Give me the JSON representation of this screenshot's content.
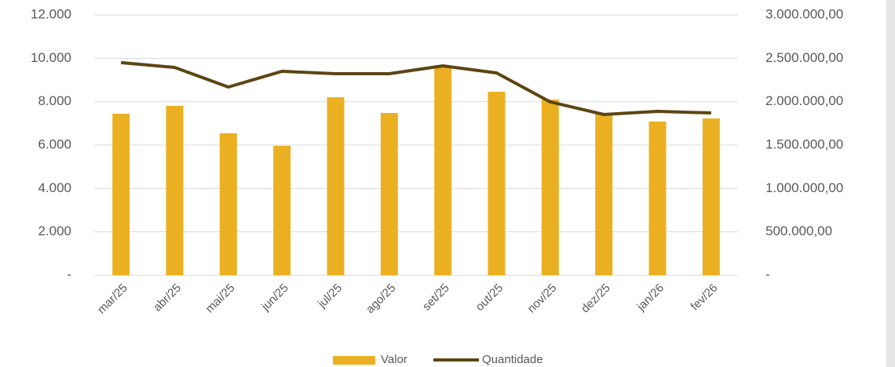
{
  "chart_data": {
    "type": "bar-line",
    "categories": [
      "mar/25",
      "abr/25",
      "mai/25",
      "jun/25",
      "jul/25",
      "ago/25",
      "set/25",
      "out/25",
      "nov/25",
      "dez/25",
      "jan/26",
      "fev/26"
    ],
    "series": [
      {
        "name": "Valor",
        "type": "bar",
        "axis": "y2",
        "color": "#ebb022",
        "values": [
          1861000,
          1952000,
          1636000,
          1491000,
          2051000,
          1870000,
          2413000,
          2114000,
          2024000,
          1861000,
          1771000,
          1807000
        ]
      },
      {
        "name": "Quantidade",
        "type": "line",
        "axis": "y",
        "color": "#5c4512",
        "values": [
          9800,
          9580,
          8675,
          9400,
          9290,
          9290,
          9650,
          9325,
          7990,
          7410,
          7555,
          7480
        ]
      }
    ],
    "ylim": [
      0,
      12000
    ],
    "yticks": [
      {
        "value": 0,
        "label": "-"
      },
      {
        "value": 2000,
        "label": "2.000"
      },
      {
        "value": 4000,
        "label": "4.000"
      },
      {
        "value": 6000,
        "label": "6.000"
      },
      {
        "value": 8000,
        "label": "8.000"
      },
      {
        "value": 10000,
        "label": "10.000"
      },
      {
        "value": 12000,
        "label": "12.000"
      }
    ],
    "y2lim": [
      0,
      3000000
    ],
    "y2ticks": [
      {
        "value": 0,
        "label": "-"
      },
      {
        "value": 500000,
        "label": "500.000,00"
      },
      {
        "value": 1000000,
        "label": "1.000.000,00"
      },
      {
        "value": 1500000,
        "label": "1.500.000,00"
      },
      {
        "value": 2000000,
        "label": "2.000.000,00"
      },
      {
        "value": 2500000,
        "label": "2.500.000,00"
      },
      {
        "value": 3000000,
        "label": "3.000.000,00"
      }
    ],
    "grid": true,
    "legend": "bottom"
  }
}
